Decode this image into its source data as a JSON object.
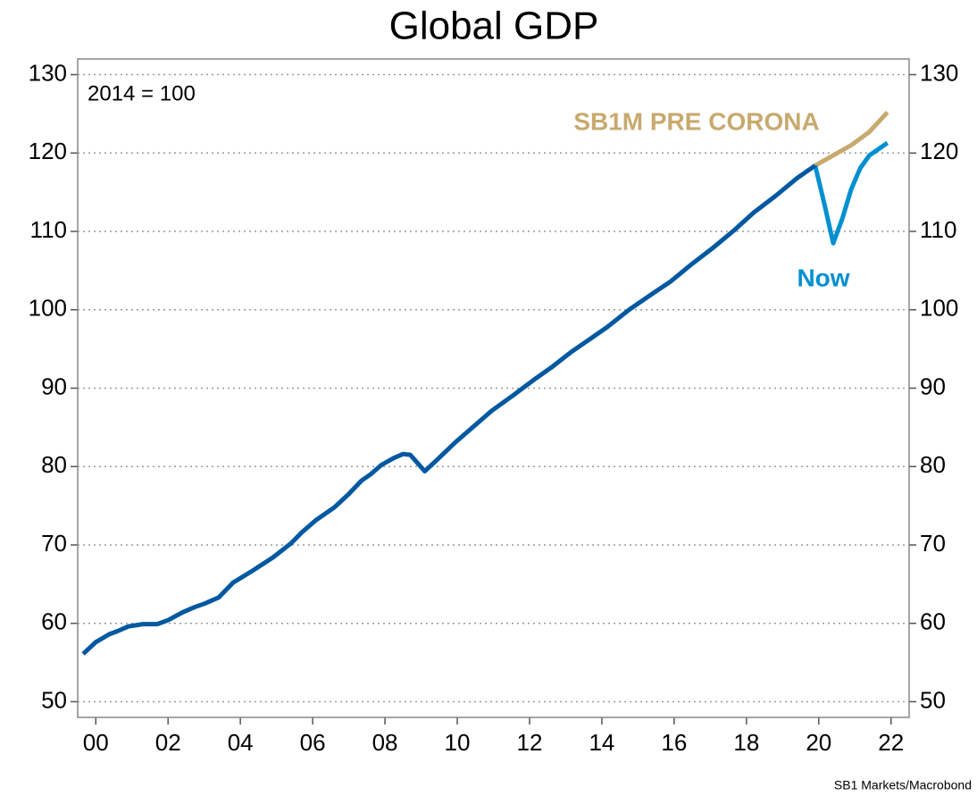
{
  "chart_data": {
    "type": "line",
    "title": "Global GDP",
    "annotation": "2014 = 100",
    "source": "SB1 Markets/Macrobond",
    "xlim": [
      1999.5,
      2022.5
    ],
    "xticks": [
      {
        "value": 2000,
        "label": "00"
      },
      {
        "value": 2002,
        "label": "02"
      },
      {
        "value": 2004,
        "label": "04"
      },
      {
        "value": 2006,
        "label": "06"
      },
      {
        "value": 2008,
        "label": "08"
      },
      {
        "value": 2010,
        "label": "10"
      },
      {
        "value": 2012,
        "label": "12"
      },
      {
        "value": 2014,
        "label": "14"
      },
      {
        "value": 2016,
        "label": "16"
      },
      {
        "value": 2018,
        "label": "18"
      },
      {
        "value": 2020,
        "label": "20"
      },
      {
        "value": 2022,
        "label": "22"
      }
    ],
    "ylim": [
      48,
      132
    ],
    "yticks": [
      50,
      60,
      70,
      80,
      90,
      100,
      110,
      120,
      130
    ],
    "grid": true,
    "series": [
      {
        "color": "#0059a0",
        "x": [
          1999.65,
          2000.0,
          2000.37,
          2000.6,
          2000.9,
          2001.3,
          2001.7,
          2002.0,
          2002.4,
          2002.75,
          2003.0,
          2003.4,
          2003.8,
          2004.3,
          2004.9,
          2005.4,
          2005.7,
          2006.1,
          2006.6,
          2007.0,
          2007.35,
          2007.6,
          2007.9,
          2008.25,
          2008.5,
          2008.7,
          2009.1,
          2009.45,
          2009.95,
          2010.45,
          2010.95,
          2011.55,
          2012.1,
          2012.65,
          2013.15,
          2013.65,
          2014.15,
          2014.75,
          2015.35,
          2015.9,
          2016.45,
          2017.1,
          2017.65,
          2018.2,
          2018.8,
          2019.4,
          2019.9
        ],
        "values": [
          56.1,
          57.6,
          58.6,
          59.0,
          59.6,
          59.9,
          59.9,
          60.4,
          61.4,
          62.1,
          62.5,
          63.3,
          65.2,
          66.6,
          68.4,
          70.2,
          71.6,
          73.2,
          74.8,
          76.5,
          78.2,
          79.0,
          80.2,
          81.1,
          81.6,
          81.5,
          79.4,
          80.9,
          83.1,
          85.1,
          87.1,
          89.1,
          91.0,
          92.8,
          94.6,
          96.2,
          97.8,
          100.0,
          101.9,
          103.6,
          105.7,
          108.0,
          110.1,
          112.4,
          114.5,
          116.8,
          118.4
        ]
      },
      {
        "name": "Now",
        "color": "#0090d0",
        "x": [
          2019.9,
          2020.15,
          2020.4,
          2020.65,
          2020.9,
          2021.15,
          2021.4,
          2021.65,
          2021.9
        ],
        "values": [
          118.4,
          113.6,
          108.5,
          111.6,
          115.4,
          118.1,
          119.7,
          120.5,
          121.3
        ]
      },
      {
        "name": "SB1M PRE CORONA",
        "color": "#c8a96e",
        "x": [
          2019.9,
          2020.4,
          2020.9,
          2021.4,
          2021.9
        ],
        "values": [
          118.4,
          119.7,
          121.0,
          122.7,
          125.2
        ]
      }
    ]
  }
}
